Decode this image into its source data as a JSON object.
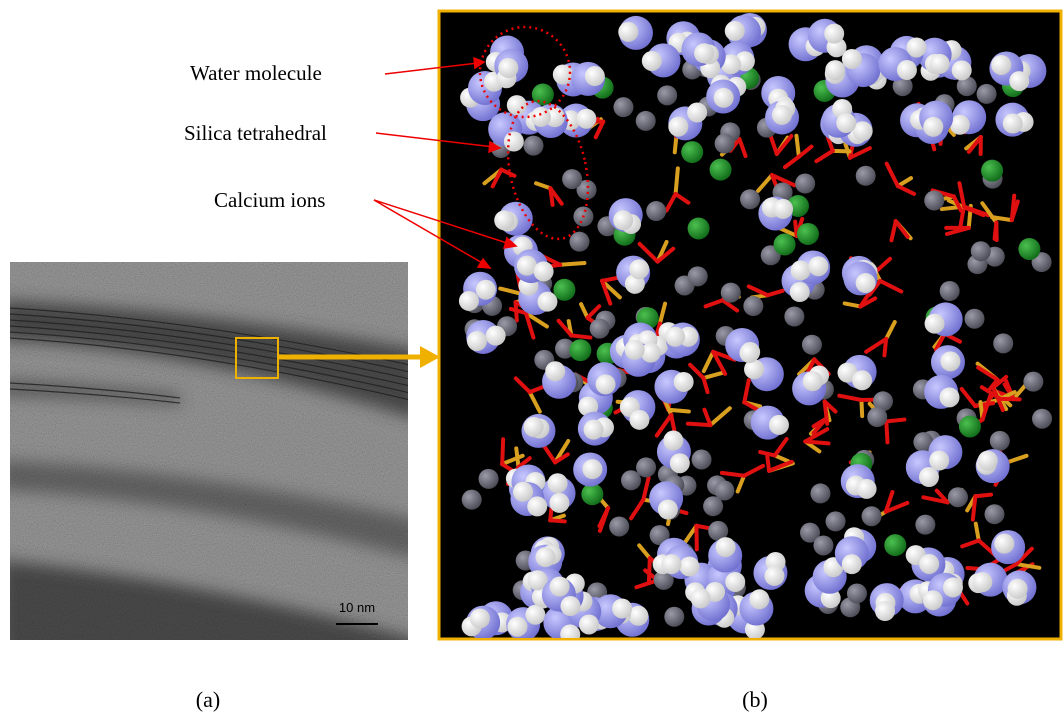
{
  "figure": {
    "labels": [
      "Water molecule",
      "Silica tetrahedral",
      "Calcium ions"
    ],
    "scale_bar": "10 nm",
    "captions": [
      "(a)",
      "(b)"
    ]
  }
}
